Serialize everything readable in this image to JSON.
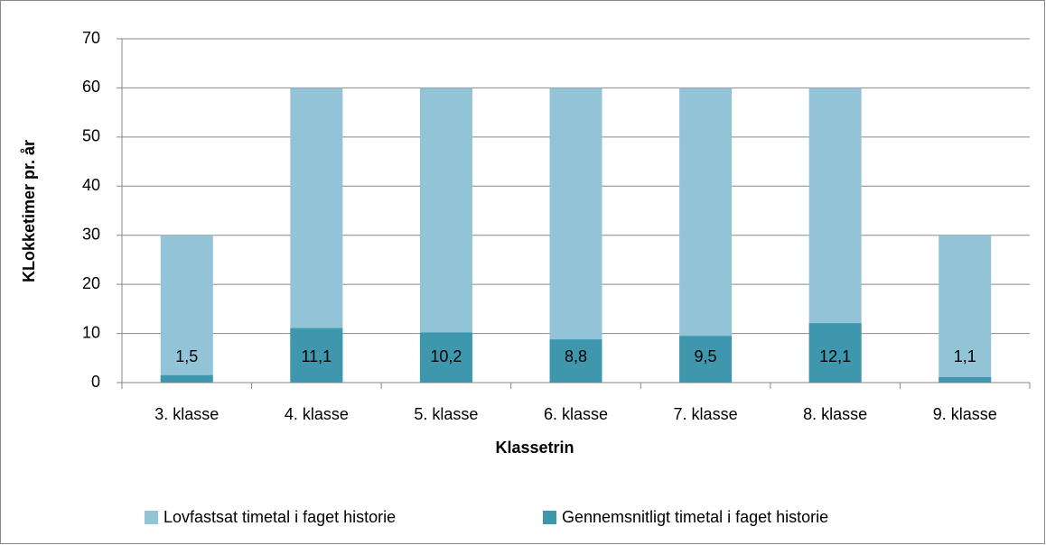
{
  "chart_data": {
    "type": "bar",
    "categories": [
      "3. klasse",
      "4. klasse",
      "5. klasse",
      "6. klasse",
      "7. klasse",
      "8. klasse",
      "9. klasse"
    ],
    "series": [
      {
        "name": "Lovfastsat timetal i faget historie",
        "color": "#93c3d6",
        "values": [
          30,
          60,
          60,
          60,
          60,
          60,
          30
        ]
      },
      {
        "name": "Gennemsnitligt timetal i faget historie",
        "color": "#3f97ad",
        "values": [
          1.5,
          11.1,
          10.2,
          8.8,
          9.5,
          12.1,
          1.1
        ],
        "value_labels": [
          "1,5",
          "11,1",
          "10,2",
          "8,8",
          "9,5",
          "12,1",
          "1,1"
        ]
      }
    ],
    "xlabel": "Klassetrin",
    "ylabel": "KLokketimer pr. år",
    "ylim": [
      0,
      70
    ],
    "yticks": [
      0,
      10,
      20,
      30,
      40,
      50,
      60,
      70
    ],
    "grid": true,
    "legend": "bottom"
  }
}
